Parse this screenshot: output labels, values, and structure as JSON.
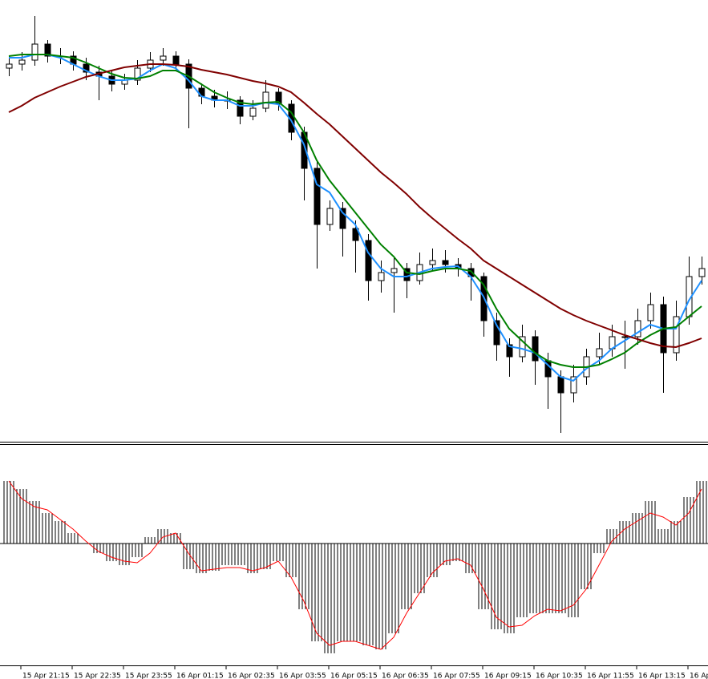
{
  "chart_data": [
    {
      "type": "candlestick",
      "ylim": [
        0,
        550
      ],
      "up_color": "#ffffff",
      "down_color": "#000000",
      "outline_color": "#000000",
      "open": [
        465,
        470,
        475,
        495,
        480,
        480,
        470,
        460,
        455,
        445,
        450,
        465,
        475,
        480,
        470,
        440,
        430,
        425,
        425,
        405,
        415,
        435,
        420,
        385,
        340,
        270,
        290,
        265,
        250,
        200,
        210,
        215,
        200,
        220,
        225,
        220,
        215,
        205,
        150,
        120,
        105,
        130,
        100,
        80,
        60,
        80,
        105,
        115,
        130,
        130,
        150,
        170,
        110,
        155,
        205
      ],
      "high": [
        480,
        485,
        530,
        500,
        490,
        486,
        478,
        468,
        462,
        458,
        475,
        485,
        490,
        486,
        476,
        446,
        438,
        436,
        430,
        425,
        450,
        440,
        425,
        392,
        350,
        300,
        298,
        275,
        258,
        225,
        228,
        222,
        235,
        240,
        238,
        228,
        222,
        210,
        160,
        128,
        145,
        138,
        110,
        88,
        95,
        115,
        135,
        145,
        150,
        165,
        185,
        180,
        175,
        230,
        230
      ],
      "low": [
        455,
        462,
        468,
        472,
        470,
        462,
        450,
        425,
        436,
        438,
        444,
        460,
        468,
        462,
        390,
        420,
        416,
        414,
        395,
        400,
        410,
        412,
        375,
        300,
        215,
        262,
        230,
        210,
        175,
        185,
        160,
        178,
        195,
        212,
        210,
        205,
        175,
        130,
        100,
        80,
        98,
        70,
        40,
        10,
        48,
        70,
        95,
        105,
        90,
        120,
        140,
        60,
        100,
        145,
        195
      ],
      "close": [
        470,
        475,
        495,
        480,
        480,
        470,
        460,
        455,
        445,
        450,
        465,
        475,
        480,
        470,
        440,
        430,
        425,
        425,
        405,
        415,
        435,
        420,
        385,
        340,
        270,
        290,
        265,
        250,
        200,
        210,
        215,
        200,
        220,
        225,
        220,
        215,
        205,
        150,
        120,
        105,
        130,
        100,
        80,
        60,
        80,
        105,
        115,
        130,
        130,
        150,
        170,
        110,
        155,
        205,
        215
      ],
      "series": [
        {
          "color": "#1e90ff",
          "values": [
            478,
            478,
            482,
            482,
            478,
            470,
            462,
            455,
            450,
            450,
            452,
            462,
            470,
            465,
            450,
            430,
            425,
            425,
            418,
            418,
            422,
            420,
            400,
            370,
            320,
            310,
            285,
            270,
            235,
            215,
            205,
            205,
            210,
            215,
            217,
            218,
            205,
            180,
            145,
            118,
            115,
            110,
            95,
            80,
            75,
            90,
            100,
            115,
            125,
            135,
            145,
            140,
            140,
            175,
            200
          ]
        },
        {
          "color": "#008000",
          "values": [
            480,
            482,
            482,
            482,
            480,
            478,
            472,
            465,
            458,
            453,
            452,
            455,
            462,
            462,
            455,
            445,
            435,
            428,
            422,
            420,
            422,
            423,
            410,
            385,
            350,
            325,
            305,
            285,
            265,
            245,
            230,
            210,
            208,
            212,
            215,
            215,
            212,
            195,
            165,
            140,
            125,
            110,
            100,
            95,
            92,
            92,
            95,
            102,
            110,
            122,
            132,
            140,
            142,
            155,
            168
          ]
        },
        {
          "color": "#800000",
          "values": [
            410,
            418,
            428,
            435,
            442,
            448,
            454,
            458,
            462,
            466,
            468,
            470,
            470,
            469,
            467,
            463,
            460,
            457,
            453,
            449,
            446,
            442,
            435,
            422,
            408,
            395,
            380,
            365,
            350,
            335,
            322,
            308,
            292,
            278,
            265,
            252,
            240,
            225,
            215,
            205,
            195,
            185,
            175,
            165,
            157,
            150,
            144,
            138,
            132,
            127,
            122,
            118,
            117,
            122,
            128
          ]
        }
      ]
    },
    {
      "type": "macd",
      "ylim": [
        -152,
        120
      ],
      "color": "#000000",
      "categories": [
        null,
        "15 Apr 21:15",
        null,
        null,
        null,
        "15 Apr 22:35",
        null,
        null,
        null,
        "15 Apr 23:55",
        null,
        null,
        null,
        "16 Apr 01:15",
        null,
        null,
        null,
        "16 Apr 02:35",
        null,
        null,
        null,
        "16 Apr 03:55",
        null,
        null,
        null,
        "16 Apr 05:15",
        null,
        null,
        null,
        "16 Apr 06:35",
        null,
        null,
        null,
        "16 Apr 07:55",
        null,
        null,
        null,
        "16 Apr 09:15",
        null,
        null,
        null,
        "16 Apr 10:35",
        null,
        null,
        null,
        "16 Apr 11:55",
        null,
        null,
        null,
        "16 Apr 13:15",
        null,
        null,
        null,
        "16 Ap",
        null
      ],
      "values": [
        78,
        68,
        53,
        38,
        28,
        13,
        0,
        -12,
        -22,
        -27,
        -17,
        8,
        18,
        13,
        -32,
        -37,
        -34,
        -27,
        -27,
        -37,
        -32,
        -22,
        -42,
        -82,
        -122,
        -137,
        -122,
        -122,
        -127,
        -132,
        -112,
        -82,
        -62,
        -42,
        -27,
        -22,
        -37,
        -82,
        -107,
        -112,
        -92,
        -87,
        -87,
        -87,
        -92,
        -57,
        -12,
        18,
        28,
        38,
        53,
        18,
        28,
        58,
        78
      ],
      "series": [
        {
          "color": "#ff0000",
          "values": [
            78,
            56,
            46,
            42,
            30,
            18,
            3,
            -10,
            -17,
            -22,
            -24,
            -12,
            8,
            13,
            -12,
            -34,
            -32,
            -30,
            -30,
            -34,
            -30,
            -22,
            -42,
            -72,
            -112,
            -127,
            -122,
            -122,
            -127,
            -132,
            -117,
            -87,
            -62,
            -37,
            -22,
            -19,
            -27,
            -57,
            -92,
            -104,
            -102,
            -90,
            -82,
            -84,
            -77,
            -57,
            -27,
            3,
            18,
            28,
            38,
            33,
            23,
            38,
            68
          ]
        }
      ]
    }
  ]
}
